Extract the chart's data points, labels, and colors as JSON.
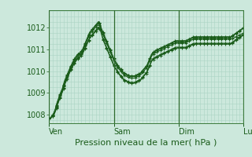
{
  "bg_color": "#cce8dc",
  "grid_color_minor": "#aad4c4",
  "grid_color_major": "#88c0a8",
  "line_color": "#1a5c1a",
  "xlabel": "Pression niveau de la mer( hPa )",
  "xlabel_fontsize": 8,
  "tick_fontsize": 7,
  "ylim": [
    1007.6,
    1012.8
  ],
  "yticks": [
    1008,
    1009,
    1010,
    1011,
    1012
  ],
  "day_labels": [
    "Ven",
    "Sam",
    "Dim",
    "Lun"
  ],
  "day_positions": [
    0,
    72,
    144,
    216
  ],
  "total_points": 217,
  "series": [
    [
      1007.8,
      1007.83,
      1007.86,
      1007.9,
      1007.95,
      1008.0,
      1008.1,
      1008.2,
      1008.35,
      1008.5,
      1008.6,
      1008.72,
      1008.85,
      1008.95,
      1009.05,
      1009.15,
      1009.3,
      1009.45,
      1009.55,
      1009.65,
      1009.75,
      1009.85,
      1009.95,
      1010.05,
      1010.15,
      1010.2,
      1010.3,
      1010.37,
      1010.45,
      1010.52,
      1010.58,
      1010.63,
      1010.68,
      1010.73,
      1010.73,
      1010.78,
      1010.83,
      1010.88,
      1010.98,
      1011.08,
      1011.18,
      1011.28,
      1011.38,
      1011.48,
      1011.58,
      1011.68,
      1011.73,
      1011.78,
      1011.83,
      1011.88,
      1011.93,
      1011.98,
      1012.03,
      1012.08,
      1012.13,
      1012.18,
      1012.13,
      1012.03,
      1011.88,
      1011.78,
      1011.68,
      1011.58,
      1011.48,
      1011.38,
      1011.28,
      1011.18,
      1011.08,
      1010.98,
      1010.88,
      1010.78,
      1010.68,
      1010.58,
      1010.48,
      1010.38,
      1010.33,
      1010.28,
      1010.18,
      1010.13,
      1010.08,
      1010.03,
      1009.98,
      1009.93,
      1009.88,
      1009.83,
      1009.8,
      1009.78,
      1009.76,
      1009.74,
      1009.72,
      1009.7,
      1009.68,
      1009.68,
      1009.68,
      1009.68,
      1009.68,
      1009.68,
      1009.7,
      1009.72,
      1009.74,
      1009.76,
      1009.78,
      1009.8,
      1009.83,
      1009.88,
      1009.93,
      1009.98,
      1010.03,
      1010.08,
      1010.13,
      1010.18,
      1010.28,
      1010.38,
      1010.48,
      1010.58,
      1010.68,
      1010.73,
      1010.78,
      1010.81,
      1010.83,
      1010.86,
      1010.88,
      1010.9,
      1010.92,
      1010.94,
      1010.96,
      1010.98,
      1011.0,
      1011.02,
      1011.04,
      1011.06,
      1011.08,
      1011.1,
      1011.12,
      1011.14,
      1011.16,
      1011.18,
      1011.2,
      1011.22,
      1011.24,
      1011.26,
      1011.28,
      1011.3,
      1011.3,
      1011.3,
      1011.3,
      1011.3,
      1011.3,
      1011.3,
      1011.3,
      1011.3,
      1011.3,
      1011.3,
      1011.3,
      1011.32,
      1011.34,
      1011.36,
      1011.38,
      1011.4,
      1011.42,
      1011.44,
      1011.46,
      1011.48,
      1011.48,
      1011.48,
      1011.48,
      1011.48,
      1011.48,
      1011.48,
      1011.48,
      1011.48,
      1011.48,
      1011.48,
      1011.48,
      1011.48,
      1011.48,
      1011.48,
      1011.48,
      1011.48,
      1011.48,
      1011.48,
      1011.48,
      1011.48,
      1011.48,
      1011.48,
      1011.48,
      1011.48,
      1011.48,
      1011.48,
      1011.48,
      1011.48,
      1011.48,
      1011.48,
      1011.48,
      1011.48,
      1011.48,
      1011.48,
      1011.48,
      1011.48,
      1011.48,
      1011.48,
      1011.48,
      1011.48,
      1011.48,
      1011.48,
      1011.5,
      1011.52,
      1011.54,
      1011.56,
      1011.58,
      1011.6,
      1011.62,
      1011.64,
      1011.66,
      1011.68,
      1011.7,
      1011.72,
      1011.74
    ],
    [
      1007.8,
      1007.83,
      1007.87,
      1007.92,
      1007.97,
      1008.03,
      1008.13,
      1008.25,
      1008.4,
      1008.55,
      1008.65,
      1008.78,
      1008.9,
      1009.0,
      1009.1,
      1009.2,
      1009.35,
      1009.5,
      1009.6,
      1009.7,
      1009.8,
      1009.9,
      1010.0,
      1010.1,
      1010.2,
      1010.27,
      1010.37,
      1010.44,
      1010.52,
      1010.59,
      1010.65,
      1010.7,
      1010.75,
      1010.8,
      1010.8,
      1010.85,
      1010.9,
      1010.95,
      1011.05,
      1011.15,
      1011.25,
      1011.35,
      1011.45,
      1011.55,
      1011.65,
      1011.75,
      1011.8,
      1011.85,
      1011.9,
      1011.95,
      1012.0,
      1012.05,
      1012.1,
      1012.15,
      1012.2,
      1012.25,
      1012.2,
      1012.1,
      1011.95,
      1011.85,
      1011.75,
      1011.65,
      1011.55,
      1011.45,
      1011.35,
      1011.25,
      1011.15,
      1011.05,
      1010.95,
      1010.85,
      1010.75,
      1010.65,
      1010.55,
      1010.45,
      1010.4,
      1010.35,
      1010.25,
      1010.2,
      1010.15,
      1010.1,
      1010.05,
      1010.0,
      1009.95,
      1009.9,
      1009.87,
      1009.85,
      1009.83,
      1009.81,
      1009.79,
      1009.77,
      1009.75,
      1009.75,
      1009.75,
      1009.75,
      1009.75,
      1009.75,
      1009.77,
      1009.79,
      1009.81,
      1009.83,
      1009.85,
      1009.87,
      1009.9,
      1009.95,
      1010.0,
      1010.05,
      1010.1,
      1010.15,
      1010.2,
      1010.25,
      1010.35,
      1010.45,
      1010.55,
      1010.65,
      1010.75,
      1010.8,
      1010.85,
      1010.88,
      1010.9,
      1010.93,
      1010.95,
      1010.97,
      1010.99,
      1011.01,
      1011.03,
      1011.05,
      1011.07,
      1011.09,
      1011.11,
      1011.13,
      1011.15,
      1011.17,
      1011.19,
      1011.21,
      1011.23,
      1011.25,
      1011.27,
      1011.29,
      1011.31,
      1011.33,
      1011.35,
      1011.37,
      1011.37,
      1011.37,
      1011.37,
      1011.37,
      1011.37,
      1011.37,
      1011.37,
      1011.37,
      1011.37,
      1011.37,
      1011.37,
      1011.39,
      1011.41,
      1011.43,
      1011.45,
      1011.47,
      1011.49,
      1011.51,
      1011.53,
      1011.55,
      1011.55,
      1011.55,
      1011.55,
      1011.55,
      1011.55,
      1011.55,
      1011.55,
      1011.55,
      1011.55,
      1011.55,
      1011.55,
      1011.55,
      1011.55,
      1011.55,
      1011.55,
      1011.55,
      1011.55,
      1011.55,
      1011.55,
      1011.55,
      1011.55,
      1011.55,
      1011.55,
      1011.55,
      1011.55,
      1011.55,
      1011.55,
      1011.55,
      1011.55,
      1011.55,
      1011.55,
      1011.55,
      1011.55,
      1011.55,
      1011.55,
      1011.55,
      1011.55,
      1011.55,
      1011.55,
      1011.55,
      1011.55,
      1011.57,
      1011.6,
      1011.63,
      1011.66,
      1011.69,
      1011.72,
      1011.75,
      1011.78,
      1011.81,
      1011.84,
      1011.87,
      1011.9,
      1011.93,
      1011.96
    ],
    [
      1007.8,
      1007.84,
      1007.88,
      1007.93,
      1007.99,
      1008.06,
      1008.16,
      1008.28,
      1008.43,
      1008.58,
      1008.68,
      1008.81,
      1008.93,
      1009.03,
      1009.13,
      1009.23,
      1009.38,
      1009.53,
      1009.63,
      1009.73,
      1009.83,
      1009.93,
      1010.03,
      1010.13,
      1010.23,
      1010.3,
      1010.4,
      1010.47,
      1010.55,
      1010.62,
      1010.68,
      1010.73,
      1010.78,
      1010.83,
      1010.83,
      1010.88,
      1010.93,
      1010.98,
      1011.08,
      1011.18,
      1011.28,
      1011.38,
      1011.48,
      1011.58,
      1011.68,
      1011.78,
      1011.83,
      1011.88,
      1011.93,
      1011.98,
      1012.03,
      1012.08,
      1012.13,
      1012.18,
      1012.23,
      1012.28,
      1012.23,
      1012.13,
      1011.98,
      1011.88,
      1011.78,
      1011.68,
      1011.58,
      1011.48,
      1011.38,
      1011.28,
      1011.18,
      1011.08,
      1010.98,
      1010.88,
      1010.78,
      1010.68,
      1010.58,
      1010.48,
      1010.43,
      1010.38,
      1010.28,
      1010.23,
      1010.18,
      1010.13,
      1010.08,
      1010.03,
      1009.98,
      1009.93,
      1009.9,
      1009.88,
      1009.86,
      1009.84,
      1009.82,
      1009.8,
      1009.78,
      1009.78,
      1009.78,
      1009.78,
      1009.78,
      1009.78,
      1009.8,
      1009.82,
      1009.84,
      1009.86,
      1009.88,
      1009.9,
      1009.93,
      1009.98,
      1010.03,
      1010.08,
      1010.13,
      1010.18,
      1010.23,
      1010.28,
      1010.38,
      1010.48,
      1010.58,
      1010.68,
      1010.78,
      1010.83,
      1010.88,
      1010.91,
      1010.93,
      1010.96,
      1010.98,
      1011.0,
      1011.02,
      1011.04,
      1011.06,
      1011.08,
      1011.1,
      1011.12,
      1011.14,
      1011.16,
      1011.18,
      1011.2,
      1011.22,
      1011.24,
      1011.26,
      1011.28,
      1011.3,
      1011.32,
      1011.34,
      1011.36,
      1011.38,
      1011.4,
      1011.4,
      1011.4,
      1011.4,
      1011.4,
      1011.4,
      1011.4,
      1011.4,
      1011.4,
      1011.4,
      1011.4,
      1011.4,
      1011.42,
      1011.44,
      1011.46,
      1011.48,
      1011.5,
      1011.52,
      1011.54,
      1011.56,
      1011.58,
      1011.58,
      1011.58,
      1011.58,
      1011.58,
      1011.58,
      1011.58,
      1011.58,
      1011.58,
      1011.58,
      1011.58,
      1011.58,
      1011.58,
      1011.58,
      1011.58,
      1011.58,
      1011.58,
      1011.58,
      1011.58,
      1011.58,
      1011.58,
      1011.58,
      1011.58,
      1011.58,
      1011.58,
      1011.58,
      1011.58,
      1011.58,
      1011.58,
      1011.58,
      1011.58,
      1011.58,
      1011.58,
      1011.58,
      1011.58,
      1011.58,
      1011.58,
      1011.58,
      1011.58,
      1011.58,
      1011.58,
      1011.58,
      1011.6,
      1011.63,
      1011.66,
      1011.69,
      1011.72,
      1011.75,
      1011.78,
      1011.81,
      1011.84,
      1011.87,
      1011.9,
      1011.93,
      1011.96,
      1011.99
    ],
    [
      1007.8,
      1007.82,
      1007.85,
      1007.89,
      1007.94,
      1007.99,
      1008.07,
      1008.18,
      1008.32,
      1008.46,
      1008.56,
      1008.68,
      1008.8,
      1008.9,
      1009.0,
      1009.1,
      1009.24,
      1009.38,
      1009.48,
      1009.58,
      1009.68,
      1009.78,
      1009.88,
      1009.98,
      1010.08,
      1010.14,
      1010.24,
      1010.31,
      1010.38,
      1010.45,
      1010.51,
      1010.56,
      1010.61,
      1010.66,
      1010.66,
      1010.71,
      1010.76,
      1010.81,
      1010.9,
      1010.99,
      1011.08,
      1011.17,
      1011.26,
      1011.35,
      1011.44,
      1011.53,
      1011.58,
      1011.63,
      1011.68,
      1011.73,
      1011.78,
      1011.83,
      1011.88,
      1011.93,
      1011.98,
      1012.03,
      1011.98,
      1011.93,
      1011.78,
      1011.63,
      1011.48,
      1011.38,
      1011.28,
      1011.18,
      1011.08,
      1010.98,
      1010.88,
      1010.78,
      1010.68,
      1010.58,
      1010.48,
      1010.38,
      1010.28,
      1010.18,
      1010.13,
      1010.08,
      1009.98,
      1009.93,
      1009.88,
      1009.83,
      1009.78,
      1009.73,
      1009.68,
      1009.63,
      1009.6,
      1009.58,
      1009.56,
      1009.54,
      1009.52,
      1009.5,
      1009.48,
      1009.48,
      1009.48,
      1009.48,
      1009.48,
      1009.48,
      1009.5,
      1009.52,
      1009.54,
      1009.56,
      1009.58,
      1009.6,
      1009.63,
      1009.68,
      1009.73,
      1009.78,
      1009.83,
      1009.88,
      1009.93,
      1009.98,
      1010.08,
      1010.18,
      1010.28,
      1010.38,
      1010.48,
      1010.53,
      1010.58,
      1010.61,
      1010.63,
      1010.66,
      1010.68,
      1010.7,
      1010.72,
      1010.74,
      1010.76,
      1010.78,
      1010.8,
      1010.82,
      1010.84,
      1010.86,
      1010.88,
      1010.9,
      1010.92,
      1010.94,
      1010.96,
      1010.98,
      1011.0,
      1011.02,
      1011.04,
      1011.06,
      1011.08,
      1011.1,
      1011.1,
      1011.1,
      1011.1,
      1011.1,
      1011.1,
      1011.1,
      1011.1,
      1011.1,
      1011.1,
      1011.1,
      1011.1,
      1011.12,
      1011.14,
      1011.16,
      1011.18,
      1011.2,
      1011.22,
      1011.24,
      1011.26,
      1011.28,
      1011.28,
      1011.28,
      1011.28,
      1011.28,
      1011.28,
      1011.28,
      1011.28,
      1011.28,
      1011.28,
      1011.28,
      1011.28,
      1011.28,
      1011.28,
      1011.28,
      1011.28,
      1011.28,
      1011.28,
      1011.28,
      1011.28,
      1011.28,
      1011.28,
      1011.28,
      1011.28,
      1011.28,
      1011.28,
      1011.28,
      1011.28,
      1011.28,
      1011.28,
      1011.28,
      1011.28,
      1011.28,
      1011.28,
      1011.28,
      1011.28,
      1011.28,
      1011.28,
      1011.28,
      1011.28,
      1011.28,
      1011.28,
      1011.3,
      1011.33,
      1011.36,
      1011.39,
      1011.42,
      1011.45,
      1011.48,
      1011.51,
      1011.54,
      1011.57,
      1011.6,
      1011.63,
      1011.66,
      1011.69
    ],
    [
      1007.8,
      1007.82,
      1007.84,
      1007.88,
      1007.93,
      1007.97,
      1008.05,
      1008.15,
      1008.29,
      1008.42,
      1008.52,
      1008.64,
      1008.76,
      1008.86,
      1008.96,
      1009.06,
      1009.2,
      1009.34,
      1009.44,
      1009.54,
      1009.64,
      1009.74,
      1009.84,
      1009.94,
      1010.04,
      1010.1,
      1010.2,
      1010.27,
      1010.34,
      1010.41,
      1010.47,
      1010.52,
      1010.57,
      1010.62,
      1010.62,
      1010.67,
      1010.72,
      1010.77,
      1010.86,
      1010.95,
      1011.04,
      1011.13,
      1011.22,
      1011.31,
      1011.4,
      1011.49,
      1011.54,
      1011.59,
      1011.64,
      1011.69,
      1011.74,
      1011.79,
      1011.84,
      1011.89,
      1011.94,
      1011.99,
      1011.94,
      1011.89,
      1011.74,
      1011.59,
      1011.44,
      1011.34,
      1011.24,
      1011.14,
      1011.04,
      1010.94,
      1010.84,
      1010.74,
      1010.64,
      1010.54,
      1010.44,
      1010.34,
      1010.24,
      1010.14,
      1010.09,
      1010.04,
      1009.94,
      1009.89,
      1009.84,
      1009.79,
      1009.74,
      1009.69,
      1009.64,
      1009.59,
      1009.56,
      1009.54,
      1009.52,
      1009.5,
      1009.48,
      1009.46,
      1009.44,
      1009.44,
      1009.44,
      1009.44,
      1009.44,
      1009.44,
      1009.46,
      1009.48,
      1009.5,
      1009.52,
      1009.54,
      1009.56,
      1009.59,
      1009.64,
      1009.69,
      1009.74,
      1009.79,
      1009.84,
      1009.89,
      1009.94,
      1010.04,
      1010.14,
      1010.24,
      1010.34,
      1010.44,
      1010.49,
      1010.54,
      1010.57,
      1010.59,
      1010.62,
      1010.64,
      1010.66,
      1010.68,
      1010.7,
      1010.72,
      1010.74,
      1010.76,
      1010.78,
      1010.8,
      1010.82,
      1010.84,
      1010.86,
      1010.88,
      1010.9,
      1010.92,
      1010.94,
      1010.96,
      1010.98,
      1011.0,
      1011.02,
      1011.04,
      1011.06,
      1011.06,
      1011.06,
      1011.06,
      1011.06,
      1011.06,
      1011.06,
      1011.06,
      1011.06,
      1011.06,
      1011.06,
      1011.06,
      1011.08,
      1011.1,
      1011.12,
      1011.14,
      1011.16,
      1011.18,
      1011.2,
      1011.22,
      1011.24,
      1011.24,
      1011.24,
      1011.24,
      1011.24,
      1011.24,
      1011.24,
      1011.24,
      1011.24,
      1011.24,
      1011.24,
      1011.24,
      1011.24,
      1011.24,
      1011.24,
      1011.24,
      1011.24,
      1011.24,
      1011.24,
      1011.24,
      1011.24,
      1011.24,
      1011.24,
      1011.24,
      1011.24,
      1011.24,
      1011.24,
      1011.24,
      1011.24,
      1011.24,
      1011.24,
      1011.24,
      1011.24,
      1011.24,
      1011.24,
      1011.24,
      1011.24,
      1011.24,
      1011.24,
      1011.24,
      1011.24,
      1011.24,
      1011.26,
      1011.29,
      1011.32,
      1011.35,
      1011.38,
      1011.41,
      1011.44,
      1011.47,
      1011.5,
      1011.53,
      1011.56,
      1011.59,
      1011.62,
      1011.65
    ]
  ]
}
